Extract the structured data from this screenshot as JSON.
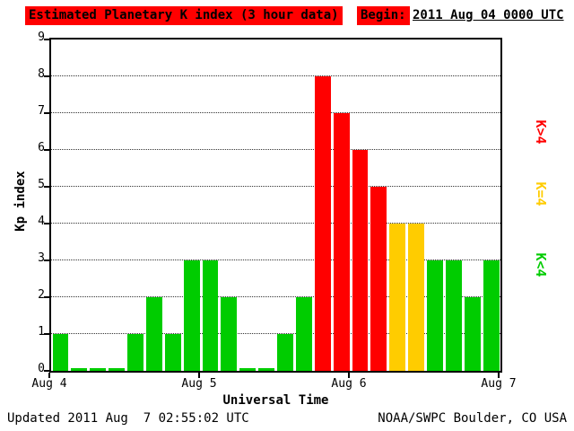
{
  "header": {
    "title": "Estimated Planetary K index (3 hour data)",
    "begin_label": "Begin:",
    "begin_value": "2011 Aug 04 0000 UTC"
  },
  "axes": {
    "y_title": "Kp index",
    "x_title": "Universal Time"
  },
  "legend": [
    {
      "id": "red",
      "label": "K>4",
      "color": "#ff0000"
    },
    {
      "id": "yellow",
      "label": "K=4",
      "color": "#ffcc00"
    },
    {
      "id": "green",
      "label": "K<4",
      "color": "#00cc00"
    }
  ],
  "colors": {
    "green": "#00cc00",
    "yellow": "#ffcc00",
    "red": "#ff0000",
    "title_bg": "#ff0000",
    "text": "#000000"
  },
  "footer": {
    "updated": "Updated 2011 Aug  7 02:55:02 UTC",
    "source": "NOAA/SWPC Boulder, CO USA"
  },
  "chart_data": {
    "type": "bar",
    "title": "Estimated Planetary K index (3 hour data)",
    "xlabel": "Universal Time",
    "ylabel": "Kp index",
    "ylim": [
      0,
      9
    ],
    "y_ticks": [
      0,
      1,
      2,
      3,
      4,
      5,
      6,
      7,
      8,
      9
    ],
    "x_ticks": [
      "Aug 4",
      "Aug 5",
      "Aug 6",
      "Aug 7"
    ],
    "begin": "2011 Aug 04 0000 UTC",
    "bin_hours": 3,
    "values": [
      1,
      0,
      0,
      0,
      1,
      2,
      1,
      3,
      3,
      2,
      0,
      0,
      1,
      2,
      8,
      7,
      6,
      5,
      4,
      4,
      3,
      3,
      2,
      3
    ],
    "days": [
      {
        "date": "Aug 4",
        "kp": [
          1,
          0,
          0,
          0,
          1,
          2,
          1,
          3
        ]
      },
      {
        "date": "Aug 5",
        "kp": [
          3,
          2,
          0,
          0,
          1,
          2,
          8,
          7
        ]
      },
      {
        "date": "Aug 6",
        "kp": [
          6,
          5,
          4,
          4,
          3,
          3,
          2,
          3
        ]
      }
    ],
    "color_rule": "K<4 green, K=4 yellow, K>4 red",
    "grid": "dotted horizontal lines at integer Kp levels",
    "legend_position": "right, rotated"
  }
}
